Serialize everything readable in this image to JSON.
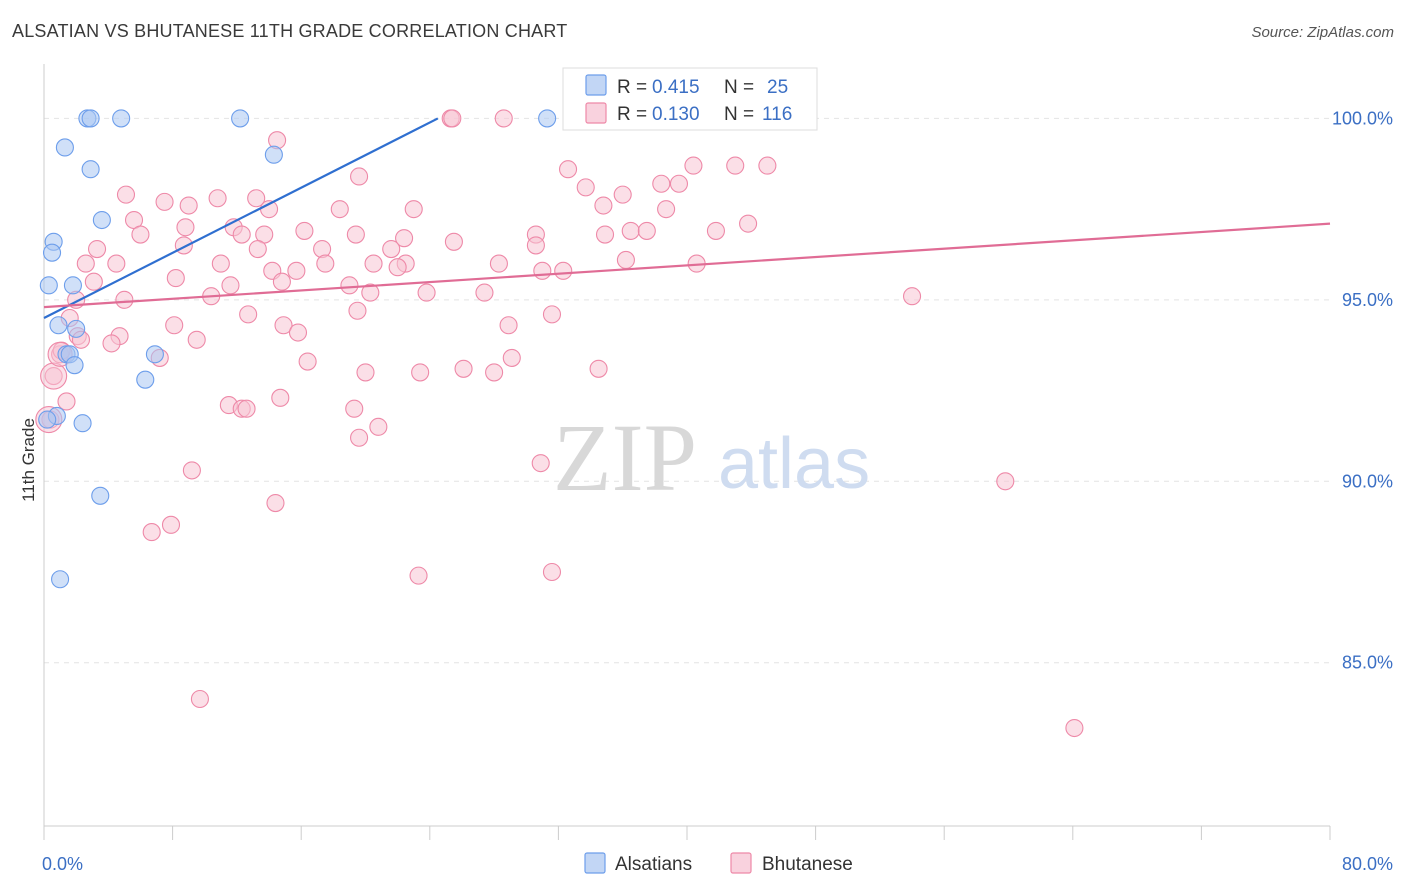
{
  "title": "ALSATIAN VS BHUTANESE 11TH GRADE CORRELATION CHART",
  "source": "Source: ZipAtlas.com",
  "watermark": {
    "zip": "ZIP",
    "atlas": "atlas"
  },
  "colors": {
    "blue": "#6d9eeb",
    "blue_fill": "#a9c6f2",
    "blue_line": "#2f6fd0",
    "pink": "#ee89a8",
    "pink_fill": "#f7c4d3",
    "pink_line": "#e06c95",
    "tick_text": "#3b6fc4",
    "grid": "#e4e4e4"
  },
  "legend": {
    "rows": [
      {
        "r_label": "R = ",
        "r_value": "0.415",
        "n_label": "N = ",
        "n_value": "25"
      },
      {
        "r_label": "R = ",
        "r_value": "0.130",
        "n_label": "N = ",
        "n_value": "116"
      }
    ]
  },
  "bottom_legend": [
    "Alsatians",
    "Bhutanese"
  ],
  "chart_data": {
    "type": "scatter",
    "title": "ALSATIAN VS BHUTANESE 11TH GRADE CORRELATION CHART",
    "xlabel": "",
    "ylabel": "11th Grade",
    "xlim": [
      0,
      80
    ],
    "ylim": [
      80.5,
      101.5
    ],
    "x_tick_labels": [
      "0.0%",
      "80.0%"
    ],
    "y_ticks": [
      85,
      90,
      95,
      100
    ],
    "y_tick_labels": [
      "85.0%",
      "90.0%",
      "95.0%",
      "100.0%"
    ],
    "grid": true,
    "legend_position": "top-center",
    "series": [
      {
        "name": "Alsatians",
        "color": "#6d9eeb",
        "trend": {
          "x": [
            0.0,
            24.5
          ],
          "y": [
            94.5,
            100.0
          ]
        },
        "points": [
          [
            2.7,
            100.0
          ],
          [
            2.9,
            100.0
          ],
          [
            4.8,
            100.0
          ],
          [
            12.2,
            100.0
          ],
          [
            31.3,
            100.0
          ],
          [
            1.3,
            99.2
          ],
          [
            2.9,
            98.6
          ],
          [
            14.3,
            99.0
          ],
          [
            3.6,
            97.2
          ],
          [
            0.6,
            96.6
          ],
          [
            0.5,
            96.3
          ],
          [
            0.3,
            95.4
          ],
          [
            1.8,
            95.4
          ],
          [
            0.9,
            94.3
          ],
          [
            2.0,
            94.2
          ],
          [
            1.4,
            93.5
          ],
          [
            1.6,
            93.5
          ],
          [
            6.9,
            93.5
          ],
          [
            1.9,
            93.2
          ],
          [
            6.3,
            92.8
          ],
          [
            0.8,
            91.8
          ],
          [
            0.2,
            91.7
          ],
          [
            2.4,
            91.6
          ],
          [
            3.5,
            89.6
          ],
          [
            1.0,
            87.3
          ]
        ]
      },
      {
        "name": "Bhutanese",
        "color": "#ee89a8",
        "trend": {
          "x": [
            0.0,
            80.0
          ],
          "y": [
            94.8,
            97.1
          ]
        },
        "points": [
          [
            25.3,
            100.0
          ],
          [
            25.4,
            100.0
          ],
          [
            28.6,
            100.0
          ],
          [
            45.0,
            100.0
          ],
          [
            44.5,
            100.0
          ],
          [
            14.5,
            99.4
          ],
          [
            32.6,
            98.6
          ],
          [
            40.4,
            98.7
          ],
          [
            43.0,
            98.7
          ],
          [
            45.0,
            98.7
          ],
          [
            19.6,
            98.4
          ],
          [
            33.7,
            98.1
          ],
          [
            38.4,
            98.2
          ],
          [
            39.5,
            98.2
          ],
          [
            36.0,
            97.9
          ],
          [
            5.1,
            97.9
          ],
          [
            7.5,
            97.7
          ],
          [
            9.0,
            97.6
          ],
          [
            10.8,
            97.8
          ],
          [
            13.2,
            97.8
          ],
          [
            14.0,
            97.5
          ],
          [
            18.4,
            97.5
          ],
          [
            23.0,
            97.5
          ],
          [
            34.8,
            97.6
          ],
          [
            5.6,
            97.2
          ],
          [
            8.8,
            97.0
          ],
          [
            11.8,
            97.0
          ],
          [
            12.3,
            96.8
          ],
          [
            6.0,
            96.8
          ],
          [
            13.7,
            96.8
          ],
          [
            16.2,
            96.9
          ],
          [
            19.4,
            96.8
          ],
          [
            30.6,
            96.8
          ],
          [
            34.9,
            96.8
          ],
          [
            36.5,
            96.9
          ],
          [
            37.5,
            96.9
          ],
          [
            25.5,
            96.6
          ],
          [
            22.4,
            96.7
          ],
          [
            8.7,
            96.5
          ],
          [
            21.6,
            96.4
          ],
          [
            17.3,
            96.4
          ],
          [
            13.3,
            96.4
          ],
          [
            3.3,
            96.4
          ],
          [
            2.6,
            96.0
          ],
          [
            4.5,
            96.0
          ],
          [
            11.0,
            96.0
          ],
          [
            17.5,
            96.0
          ],
          [
            20.5,
            96.0
          ],
          [
            22.5,
            96.0
          ],
          [
            22.0,
            95.9
          ],
          [
            28.3,
            96.0
          ],
          [
            31.0,
            95.8
          ],
          [
            32.3,
            95.8
          ],
          [
            15.7,
            95.8
          ],
          [
            14.2,
            95.8
          ],
          [
            8.2,
            95.6
          ],
          [
            3.1,
            95.5
          ],
          [
            11.6,
            95.4
          ],
          [
            19.0,
            95.4
          ],
          [
            23.8,
            95.2
          ],
          [
            20.3,
            95.2
          ],
          [
            27.4,
            95.2
          ],
          [
            14.8,
            95.5
          ],
          [
            5.0,
            95.0
          ],
          [
            2.0,
            95.0
          ],
          [
            10.4,
            95.1
          ],
          [
            1.6,
            94.5
          ],
          [
            12.7,
            94.6
          ],
          [
            19.5,
            94.7
          ],
          [
            8.1,
            94.3
          ],
          [
            14.9,
            94.3
          ],
          [
            15.8,
            94.1
          ],
          [
            28.9,
            94.3
          ],
          [
            31.6,
            94.6
          ],
          [
            4.7,
            94.0
          ],
          [
            2.1,
            94.0
          ],
          [
            9.5,
            93.9
          ],
          [
            4.2,
            93.8
          ],
          [
            7.2,
            93.4
          ],
          [
            1.0,
            93.5
          ],
          [
            16.4,
            93.3
          ],
          [
            20.0,
            93.0
          ],
          [
            23.4,
            93.0
          ],
          [
            29.1,
            93.4
          ],
          [
            28.0,
            93.0
          ],
          [
            34.5,
            93.1
          ],
          [
            0.6,
            92.9
          ],
          [
            11.5,
            92.1
          ],
          [
            12.3,
            92.0
          ],
          [
            14.7,
            92.3
          ],
          [
            1.4,
            92.2
          ],
          [
            0.4,
            91.7
          ],
          [
            19.6,
            91.2
          ],
          [
            20.8,
            91.5
          ],
          [
            30.9,
            90.5
          ],
          [
            9.2,
            90.3
          ],
          [
            59.8,
            90.0
          ],
          [
            14.4,
            89.4
          ],
          [
            7.9,
            88.8
          ],
          [
            6.7,
            88.6
          ],
          [
            23.3,
            87.4
          ],
          [
            31.6,
            87.5
          ],
          [
            9.7,
            84.0
          ],
          [
            64.1,
            83.2
          ],
          [
            54.0,
            95.1
          ],
          [
            1.1,
            93.6
          ],
          [
            2.3,
            93.9
          ],
          [
            26.1,
            93.1
          ],
          [
            12.6,
            92.0
          ],
          [
            19.3,
            92.0
          ],
          [
            40.6,
            96.0
          ],
          [
            43.8,
            97.1
          ],
          [
            38.7,
            97.5
          ],
          [
            41.8,
            96.9
          ],
          [
            36.2,
            96.1
          ],
          [
            30.6,
            96.5
          ]
        ]
      }
    ]
  }
}
